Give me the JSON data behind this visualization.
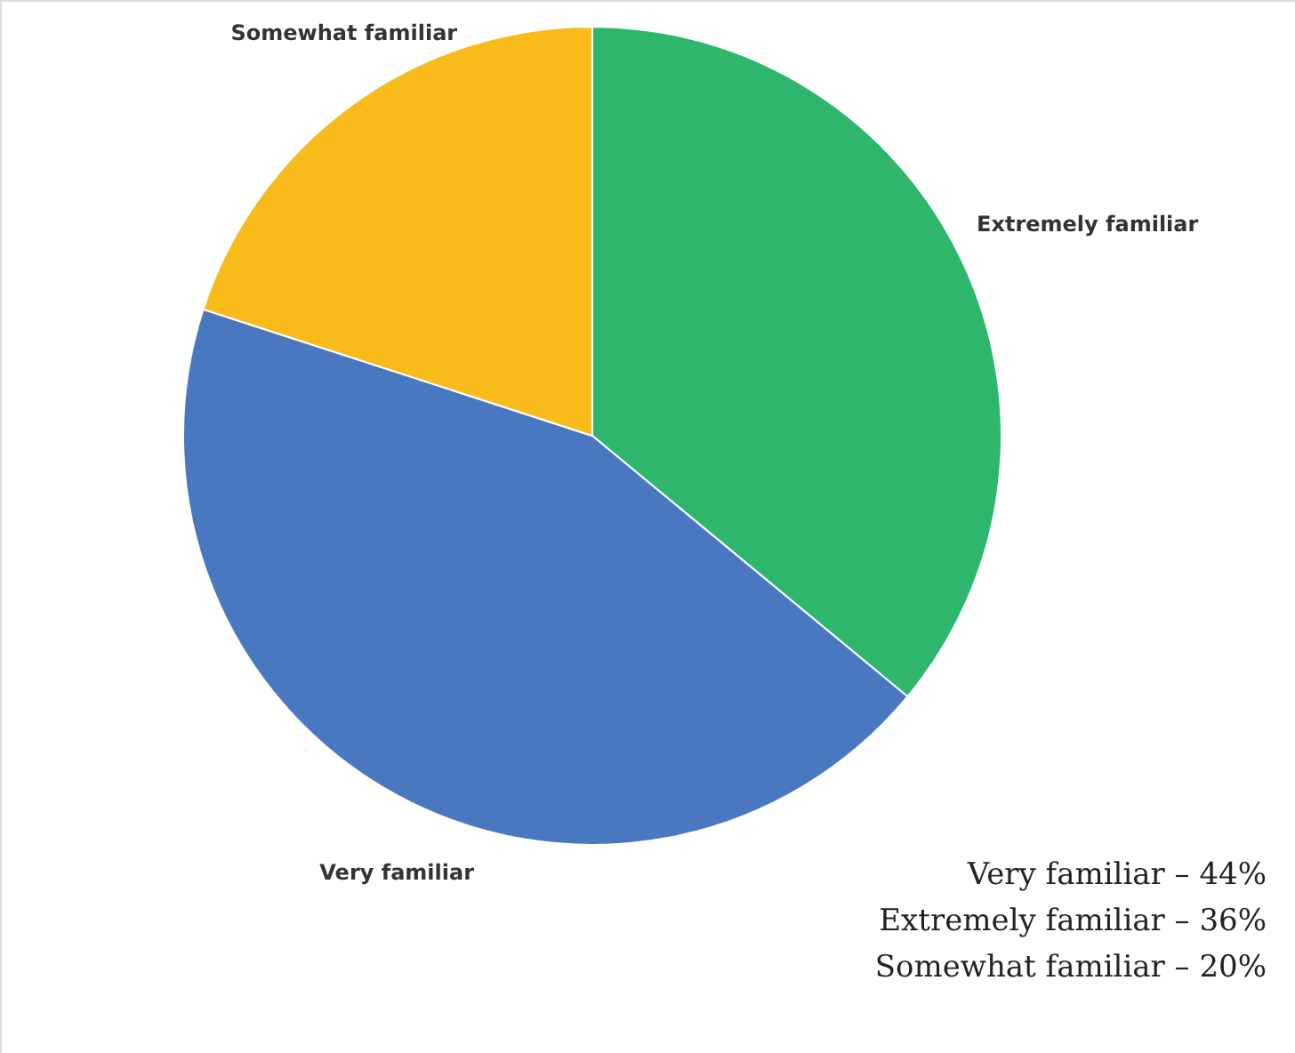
{
  "chart_data": {
    "type": "pie",
    "categories": [
      "Extremely familiar",
      "Very familiar",
      "Somewhat familiar"
    ],
    "values": [
      36,
      44,
      20
    ],
    "colors": [
      "#2eb66c",
      "#4a78c0",
      "#f8bb1a"
    ],
    "annotations": [
      "Very familiar – 44%",
      "Extremely familiar – 36%",
      "Somewhat familiar – 20%"
    ]
  }
}
